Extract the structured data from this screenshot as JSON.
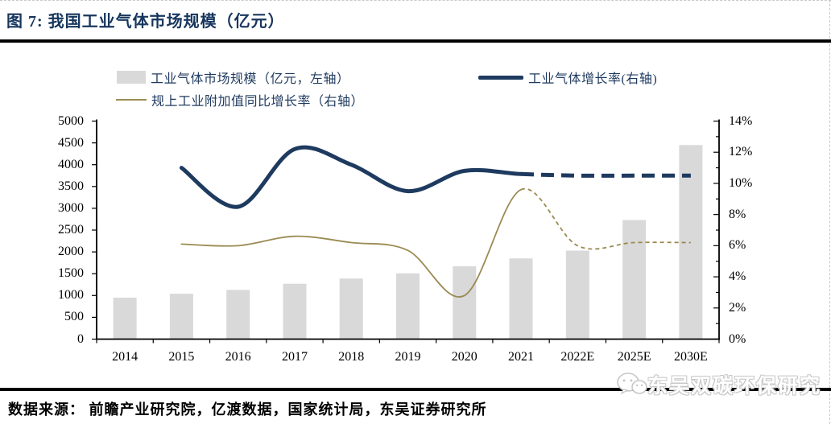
{
  "title": "图 7:  我国工业气体市场规模（亿元）",
  "source": "数据来源： 前瞻产业研究院，亿渡数据，国家统计局，东吴证券研究所",
  "watermark": "东吴双碳环保研究",
  "colors": {
    "title_navy": "#17365d",
    "bar_gray": "#d9d9d9",
    "gas_growth_line": "#1e3a5f",
    "industry_added_value_line": "#9a8b52",
    "axis_black": "#000000"
  },
  "legend": {
    "bar_label": "工业气体市场规模（亿元，左轴）",
    "gas_growth_label": "工业气体增长率(右轴)",
    "industry_added_value_label": "规上工业附加值同比增长率（右轴）"
  },
  "chart_data": {
    "type": "bar",
    "subtype": "bar+line combo, dual axis",
    "title": "我国工业气体市场规模（亿元）",
    "categories": [
      "2014",
      "2015",
      "2016",
      "2017",
      "2018",
      "2019",
      "2020",
      "2021",
      "2022E",
      "2025E",
      "2030E"
    ],
    "series": [
      {
        "name": "工业气体市场规模（亿元，左轴）",
        "type": "bar",
        "axis": "left",
        "color": "#d9d9d9",
        "values": [
          950,
          1040,
          1130,
          1270,
          1390,
          1510,
          1670,
          1850,
          2030,
          2730,
          4450
        ]
      },
      {
        "name": "工业气体增长率(右轴)",
        "type": "line",
        "axis": "right",
        "color": "#1e3a5f",
        "stroke_width": 5,
        "dash_from": "2021",
        "values": [
          null,
          11.0,
          8.5,
          12.2,
          11.2,
          9.5,
          10.8,
          10.6,
          10.5,
          10.5,
          10.5
        ]
      },
      {
        "name": "规上工业附加值同比增长率（右轴）",
        "type": "line",
        "axis": "right",
        "color": "#9a8b52",
        "stroke_width": 1.8,
        "dash_from": "2021",
        "values": [
          null,
          6.1,
          6.0,
          6.6,
          6.2,
          5.7,
          2.8,
          9.6,
          6.0,
          6.2,
          6.2
        ]
      }
    ],
    "left_axis": {
      "min": 0,
      "max": 5000,
      "step": 500,
      "tick_labels": [
        "0",
        "500",
        "1000",
        "1500",
        "2000",
        "2500",
        "3000",
        "3500",
        "4000",
        "4500",
        "5000"
      ]
    },
    "right_axis": {
      "min": 0,
      "max": 14,
      "step": 2,
      "unit": "%",
      "tick_labels": [
        "0%",
        "2%",
        "4%",
        "6%",
        "8%",
        "10%",
        "12%",
        "14%"
      ]
    },
    "grid": false,
    "legend_position": "top"
  }
}
